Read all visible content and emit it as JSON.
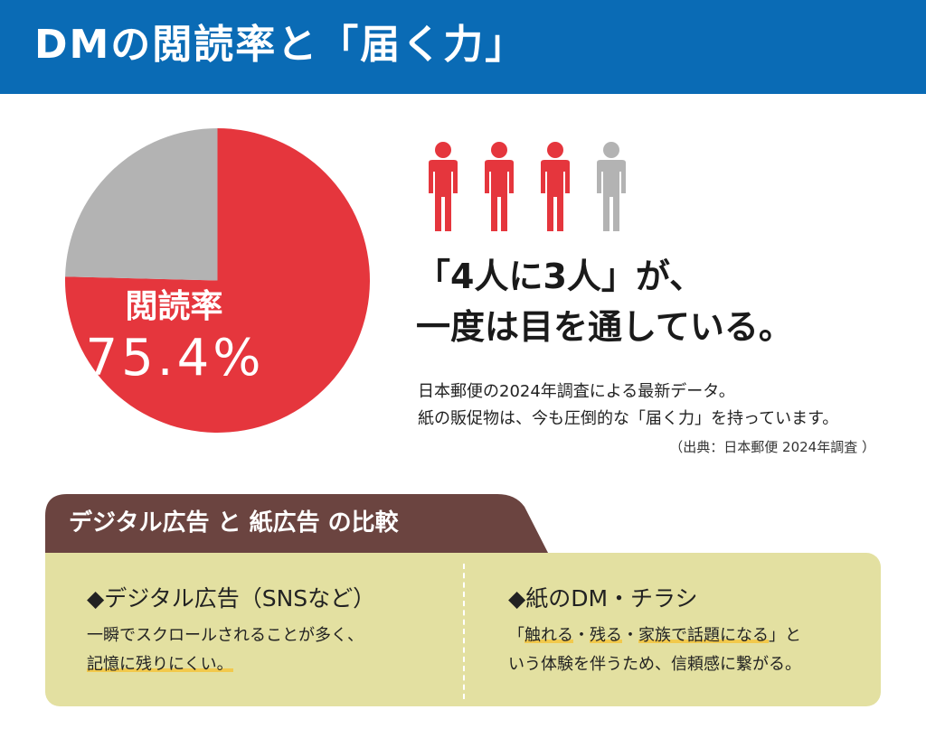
{
  "banner": {
    "title": "DMの閲読率と「届く力」",
    "color": "#0a6bb5"
  },
  "pie": {
    "label": "閲読率",
    "value_text": "75.4%",
    "read_fraction": 0.754,
    "read_color": "#e5363d",
    "rest_color": "#b3b3b3"
  },
  "people": {
    "highlighted": 3,
    "total": 4,
    "highlight_color": "#e5363d",
    "rest_color": "#b3b3b3"
  },
  "headline": {
    "line1": "「4人に3人」が、",
    "line2": "一度は目を通している。"
  },
  "description": {
    "line1": "日本郵便の2024年調査による最新データ。",
    "line2": "紙の販促物は、今も圧倒的な「届く力」を持っています。"
  },
  "source": "（出典：日本郵便 2024年調査 ）",
  "comparison": {
    "title": "デジタル広告 と 紙広告 の比較",
    "tab_color": "#6b4440",
    "panel_color": "#e3e0a1",
    "left": {
      "heading": "◆デジタル広告（SNSなど）",
      "line1": "一瞬でスクロールされることが多く、",
      "line2": "記憶に残りにくい。"
    },
    "right": {
      "heading": "◆紙のDM・チラシ",
      "line1_a": "「",
      "line1_hl1": "触れる",
      "line1_b": "・",
      "line1_hl2": "残る",
      "line1_c": "・",
      "line1_hl3": "家族で話題になる",
      "line1_d": "」と",
      "line2": "いう体験を伴うため、信頼感に繋がる。"
    }
  }
}
